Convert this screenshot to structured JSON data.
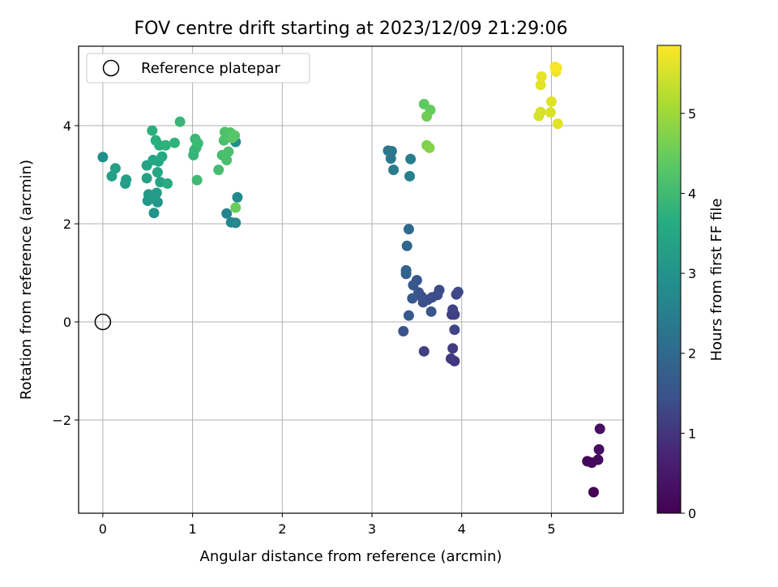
{
  "chart_data": {
    "type": "scatter",
    "title": "FOV centre drift starting at 2023/12/09 21:29:06",
    "xlabel": "Angular distance from reference (arcmin)",
    "ylabel": "Rotation from reference (arcmin)",
    "xlim": [
      -0.27,
      5.8
    ],
    "ylim": [
      -3.9,
      5.62
    ],
    "x_ticks": [
      0,
      1,
      2,
      3,
      4,
      5
    ],
    "y_ticks": [
      -2,
      0,
      2,
      4
    ],
    "x_tick_labels": [
      "0",
      "1",
      "2",
      "3",
      "4",
      "5"
    ],
    "y_tick_labels": [
      "−2",
      "0",
      "2",
      "4"
    ],
    "grid": true,
    "legend": {
      "placement": "top-left",
      "entries": [
        "Reference platepar"
      ]
    },
    "reference_point": {
      "label": "Reference platepar",
      "x": 0,
      "y": 0
    },
    "colorbar": {
      "label": "Hours from first FF file",
      "colormap": "viridis",
      "range": [
        0,
        5.85
      ],
      "ticks": [
        0,
        1,
        2,
        3,
        4,
        5
      ],
      "tick_labels": [
        "0",
        "1",
        "2",
        "3",
        "4",
        "5"
      ]
    },
    "points": [
      {
        "x": 5.47,
        "y": -3.47,
        "c": 0.05
      },
      {
        "x": 5.4,
        "y": -2.84,
        "c": 0.12
      },
      {
        "x": 5.45,
        "y": -2.87,
        "c": 0.15
      },
      {
        "x": 5.52,
        "y": -2.81,
        "c": 0.2
      },
      {
        "x": 5.53,
        "y": -2.6,
        "c": 0.25
      },
      {
        "x": 5.54,
        "y": -2.18,
        "c": 0.3
      },
      {
        "x": 3.92,
        "y": -0.8,
        "c": 1.0
      },
      {
        "x": 3.88,
        "y": -0.75,
        "c": 1.05
      },
      {
        "x": 3.9,
        "y": -0.54,
        "c": 1.1
      },
      {
        "x": 3.58,
        "y": -0.6,
        "c": 1.2
      },
      {
        "x": 3.92,
        "y": -0.16,
        "c": 1.25
      },
      {
        "x": 3.35,
        "y": -0.19,
        "c": 1.5
      },
      {
        "x": 3.89,
        "y": 0.15,
        "c": 1.15
      },
      {
        "x": 3.92,
        "y": 0.15,
        "c": 1.18
      },
      {
        "x": 3.9,
        "y": 0.25,
        "c": 1.22
      },
      {
        "x": 3.94,
        "y": 0.56,
        "c": 1.3
      },
      {
        "x": 3.96,
        "y": 0.61,
        "c": 1.32
      },
      {
        "x": 3.75,
        "y": 0.65,
        "c": 1.35
      },
      {
        "x": 3.73,
        "y": 0.55,
        "c": 1.38
      },
      {
        "x": 3.67,
        "y": 0.5,
        "c": 1.4
      },
      {
        "x": 3.62,
        "y": 0.45,
        "c": 1.42
      },
      {
        "x": 3.57,
        "y": 0.4,
        "c": 1.45
      },
      {
        "x": 3.55,
        "y": 0.52,
        "c": 1.47
      },
      {
        "x": 3.52,
        "y": 0.6,
        "c": 1.5
      },
      {
        "x": 3.5,
        "y": 0.85,
        "c": 1.55
      },
      {
        "x": 3.46,
        "y": 0.75,
        "c": 1.6
      },
      {
        "x": 3.45,
        "y": 0.48,
        "c": 1.62
      },
      {
        "x": 3.66,
        "y": 0.21,
        "c": 1.58
      },
      {
        "x": 3.41,
        "y": 0.13,
        "c": 1.65
      },
      {
        "x": 3.38,
        "y": 0.98,
        "c": 1.8
      },
      {
        "x": 3.38,
        "y": 1.05,
        "c": 1.85
      },
      {
        "x": 3.39,
        "y": 1.55,
        "c": 1.95
      },
      {
        "x": 3.41,
        "y": 1.89,
        "c": 2.0
      },
      {
        "x": 3.18,
        "y": 3.49,
        "c": 2.3
      },
      {
        "x": 3.22,
        "y": 3.48,
        "c": 2.32
      },
      {
        "x": 3.21,
        "y": 3.33,
        "c": 2.35
      },
      {
        "x": 3.24,
        "y": 3.1,
        "c": 2.4
      },
      {
        "x": 3.43,
        "y": 3.32,
        "c": 2.45
      },
      {
        "x": 3.42,
        "y": 2.97,
        "c": 2.5
      },
      {
        "x": 1.38,
        "y": 2.21,
        "c": 2.65
      },
      {
        "x": 1.43,
        "y": 2.03,
        "c": 2.7
      },
      {
        "x": 1.48,
        "y": 2.02,
        "c": 2.72
      },
      {
        "x": 1.5,
        "y": 2.54,
        "c": 2.75
      },
      {
        "x": 1.48,
        "y": 3.67,
        "c": 2.8
      },
      {
        "x": 0.0,
        "y": 3.36,
        "c": 2.9
      },
      {
        "x": 0.57,
        "y": 2.22,
        "c": 3.0
      },
      {
        "x": 0.61,
        "y": 2.44,
        "c": 3.05
      },
      {
        "x": 0.5,
        "y": 2.47,
        "c": 3.1
      },
      {
        "x": 0.55,
        "y": 2.55,
        "c": 3.12
      },
      {
        "x": 0.51,
        "y": 2.6,
        "c": 3.15
      },
      {
        "x": 0.57,
        "y": 2.57,
        "c": 3.18
      },
      {
        "x": 0.6,
        "y": 2.63,
        "c": 3.2
      },
      {
        "x": 0.25,
        "y": 2.82,
        "c": 3.25
      },
      {
        "x": 0.26,
        "y": 2.9,
        "c": 3.28
      },
      {
        "x": 0.1,
        "y": 2.97,
        "c": 3.3
      },
      {
        "x": 0.14,
        "y": 3.13,
        "c": 3.32
      },
      {
        "x": 0.49,
        "y": 3.19,
        "c": 3.35
      },
      {
        "x": 0.49,
        "y": 2.93,
        "c": 3.38
      },
      {
        "x": 0.64,
        "y": 2.85,
        "c": 3.4
      },
      {
        "x": 0.61,
        "y": 3.05,
        "c": 3.45
      },
      {
        "x": 0.56,
        "y": 3.3,
        "c": 3.48
      },
      {
        "x": 0.62,
        "y": 3.27,
        "c": 3.5
      },
      {
        "x": 0.66,
        "y": 3.37,
        "c": 3.52
      },
      {
        "x": 0.72,
        "y": 2.82,
        "c": 3.6
      },
      {
        "x": 0.63,
        "y": 3.6,
        "c": 3.65
      },
      {
        "x": 0.59,
        "y": 3.7,
        "c": 3.7
      },
      {
        "x": 0.55,
        "y": 3.9,
        "c": 3.72
      },
      {
        "x": 0.7,
        "y": 3.6,
        "c": 3.75
      },
      {
        "x": 0.8,
        "y": 3.65,
        "c": 3.78
      },
      {
        "x": 0.86,
        "y": 4.08,
        "c": 3.9
      },
      {
        "x": 1.01,
        "y": 3.4,
        "c": 3.85
      },
      {
        "x": 1.02,
        "y": 3.5,
        "c": 3.88
      },
      {
        "x": 1.04,
        "y": 3.55,
        "c": 3.9
      },
      {
        "x": 1.03,
        "y": 3.73,
        "c": 3.92
      },
      {
        "x": 1.06,
        "y": 3.64,
        "c": 3.95
      },
      {
        "x": 1.05,
        "y": 2.89,
        "c": 4.0
      },
      {
        "x": 1.29,
        "y": 3.1,
        "c": 4.05
      },
      {
        "x": 1.33,
        "y": 3.4,
        "c": 4.08
      },
      {
        "x": 1.38,
        "y": 3.3,
        "c": 4.1
      },
      {
        "x": 1.4,
        "y": 3.47,
        "c": 4.12
      },
      {
        "x": 1.35,
        "y": 3.7,
        "c": 4.15
      },
      {
        "x": 1.36,
        "y": 3.87,
        "c": 4.18
      },
      {
        "x": 1.42,
        "y": 3.86,
        "c": 4.2
      },
      {
        "x": 1.44,
        "y": 3.75,
        "c": 4.25
      },
      {
        "x": 1.47,
        "y": 3.8,
        "c": 4.3
      },
      {
        "x": 1.48,
        "y": 2.33,
        "c": 4.5
      },
      {
        "x": 3.58,
        "y": 4.44,
        "c": 4.4
      },
      {
        "x": 3.65,
        "y": 4.32,
        "c": 4.45
      },
      {
        "x": 3.61,
        "y": 4.19,
        "c": 4.55
      },
      {
        "x": 3.61,
        "y": 3.6,
        "c": 4.7
      },
      {
        "x": 3.64,
        "y": 3.55,
        "c": 4.75
      },
      {
        "x": 4.86,
        "y": 4.2,
        "c": 5.5
      },
      {
        "x": 4.88,
        "y": 4.28,
        "c": 5.52
      },
      {
        "x": 4.99,
        "y": 4.27,
        "c": 5.55
      },
      {
        "x": 5.0,
        "y": 4.49,
        "c": 5.58
      },
      {
        "x": 5.07,
        "y": 4.04,
        "c": 5.6
      },
      {
        "x": 4.88,
        "y": 4.83,
        "c": 5.62
      },
      {
        "x": 4.89,
        "y": 5.0,
        "c": 5.65
      },
      {
        "x": 5.05,
        "y": 5.1,
        "c": 5.7
      },
      {
        "x": 5.06,
        "y": 5.18,
        "c": 5.75
      },
      {
        "x": 5.04,
        "y": 5.2,
        "c": 5.8
      }
    ]
  }
}
